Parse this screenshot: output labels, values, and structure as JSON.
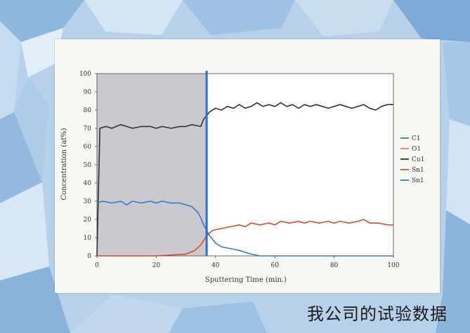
{
  "caption": "我公司的试验数据",
  "chart_data": {
    "type": "line",
    "xlabel": "Sputtering Time (min.)",
    "ylabel": "Concentration (at%)",
    "xlim": [
      0,
      100
    ],
    "ylim": [
      0,
      100
    ],
    "xticks": [
      "0",
      "20",
      "40",
      "60",
      "80",
      "100"
    ],
    "yticks": [
      "0",
      "10",
      "20",
      "30",
      "40",
      "50",
      "60",
      "70",
      "80",
      "90",
      "100"
    ],
    "shaded_region": [
      0,
      37
    ],
    "vertical_line_x": 37,
    "legend_position": "right",
    "series": [
      {
        "name": "C1",
        "color": "#2a9a4a",
        "x": [],
        "y": []
      },
      {
        "name": "O1",
        "color": "#e0846a",
        "x": [],
        "y": []
      },
      {
        "name": "Cu1",
        "color": "#333333",
        "x": [
          0,
          1,
          3,
          5,
          8,
          10,
          12,
          15,
          18,
          20,
          22,
          25,
          28,
          30,
          32,
          35,
          36,
          38,
          40,
          42,
          44,
          46,
          48,
          50,
          52,
          54,
          56,
          58,
          60,
          62,
          64,
          66,
          68,
          70,
          72,
          74,
          76,
          78,
          80,
          82,
          84,
          86,
          88,
          90,
          92,
          94,
          96,
          98,
          100
        ],
        "y": [
          0,
          70,
          71,
          70,
          72,
          71,
          70,
          71,
          71,
          70,
          71,
          70,
          71,
          71,
          72,
          71,
          75,
          79,
          81,
          80,
          82,
          81,
          83,
          81,
          82,
          84,
          82,
          83,
          82,
          84,
          82,
          83,
          81,
          83,
          82,
          83,
          82,
          81,
          82,
          83,
          82,
          81,
          82,
          83,
          81,
          80,
          82,
          83,
          83
        ]
      },
      {
        "name": "Sn1",
        "color": "#d94a2e",
        "x": [
          0,
          20,
          30,
          33,
          35,
          37,
          39,
          42,
          45,
          48,
          50,
          52,
          55,
          58,
          60,
          62,
          65,
          68,
          70,
          72,
          75,
          78,
          80,
          82,
          85,
          88,
          90,
          92,
          95,
          98,
          100
        ],
        "y": [
          0,
          0,
          1,
          3,
          6,
          11,
          14,
          15,
          16,
          17,
          16,
          18,
          17,
          18,
          17,
          19,
          18,
          19,
          18,
          19,
          18,
          19,
          18,
          19,
          18,
          19,
          20,
          18,
          18,
          17,
          17
        ]
      },
      {
        "name": "Sn1",
        "color": "#3a78c8",
        "x": [
          0,
          2,
          5,
          8,
          10,
          12,
          15,
          18,
          20,
          22,
          25,
          28,
          30,
          32,
          34,
          35,
          36,
          37,
          38,
          40,
          42,
          45,
          48,
          50,
          52,
          55,
          60,
          100
        ],
        "y": [
          29,
          30,
          29,
          30,
          28,
          30,
          29,
          30,
          29,
          30,
          29,
          29,
          28,
          27,
          24,
          21,
          17,
          14,
          11,
          7,
          5,
          4,
          3,
          2,
          1,
          0,
          0,
          0
        ]
      }
    ]
  }
}
